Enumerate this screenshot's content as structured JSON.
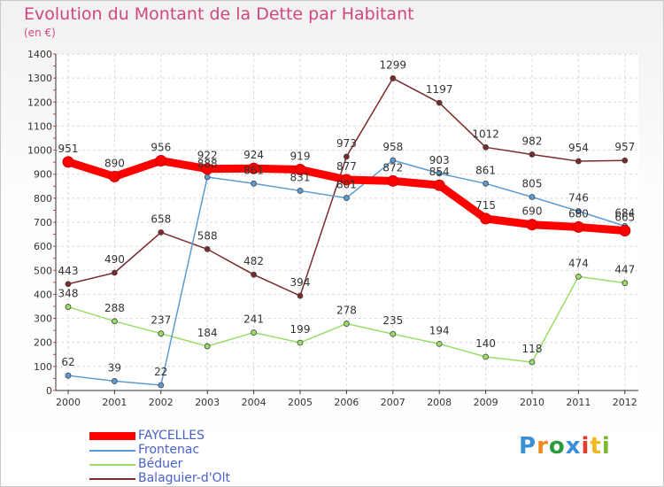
{
  "chart_data": {
    "type": "line",
    "title": "Evolution du Montant de la Dette par Habitant",
    "unit_label": "(en €)",
    "x": [
      "2000",
      "2001",
      "2002",
      "2003",
      "2004",
      "2005",
      "2006",
      "2007",
      "2008",
      "2009",
      "2010",
      "2011",
      "2012"
    ],
    "ylim": [
      0,
      1400
    ],
    "yticks": [
      0,
      100,
      200,
      300,
      400,
      500,
      600,
      700,
      800,
      900,
      1000,
      1100,
      1200,
      1300,
      1400
    ],
    "grid": true,
    "legend_position": "bottom-left",
    "series": [
      {
        "name": "FAYCELLES",
        "color": "#ff0000",
        "values": [
          951,
          890,
          956,
          922,
          924,
          919,
          877,
          872,
          854,
          715,
          690,
          680,
          665
        ]
      },
      {
        "name": "Frontenac",
        "color": "#5b9bd5",
        "values": [
          62,
          39,
          22,
          888,
          861,
          831,
          801,
          958,
          903,
          861,
          805,
          746,
          684
        ]
      },
      {
        "name": "Béduer",
        "color": "#99dd66",
        "values": [
          348,
          288,
          237,
          184,
          241,
          199,
          278,
          235,
          194,
          140,
          118,
          474,
          447
        ]
      },
      {
        "name": "Balaguier-d'Olt",
        "color": "#7a2a2a",
        "values": [
          443,
          490,
          658,
          588,
          482,
          394,
          973,
          1299,
          1197,
          1012,
          982,
          954,
          957
        ]
      }
    ]
  },
  "logo": {
    "letters": [
      "P",
      "r",
      "o",
      "x",
      "i",
      "t",
      "i"
    ],
    "colors": [
      "#3a8fd8",
      "#f08a1c",
      "#2e9a3e",
      "#3a8fd8",
      "#e23b2f",
      "#f0b81c",
      "#7ab92e"
    ]
  }
}
